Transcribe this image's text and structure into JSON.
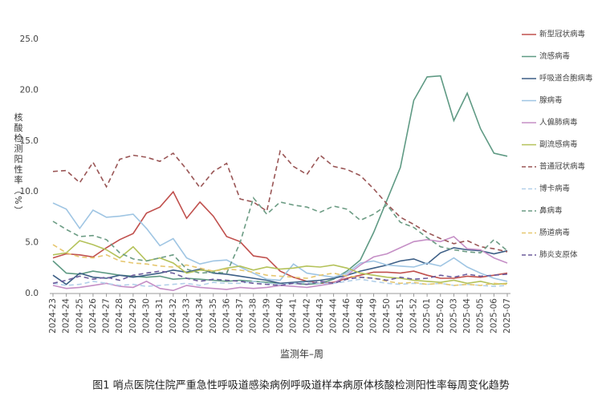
{
  "chart_data": {
    "type": "line",
    "ylabel": "核酸检测阳性率（%）",
    "xlabel": "监测年–周",
    "caption": "图1  哨点医院住院严重急性呼吸道感染病例呼吸道样本病原体核酸检测阳性率每周变化趋势",
    "categories": [
      "2024-23",
      "2024-24",
      "2024-25",
      "2024-26",
      "2024-27",
      "2024-28",
      "2024-29",
      "2024-30",
      "2024-31",
      "2024-32",
      "2024-33",
      "2024-34",
      "2024-35",
      "2024-36",
      "2024-37",
      "2024-38",
      "2024-39",
      "2024-40",
      "2024-41",
      "2024-42",
      "2024-43",
      "2024-44",
      "2024-46",
      "2024-48",
      "2024-49",
      "2024-50",
      "2024-51",
      "2024-52",
      "2025-01",
      "2025-02",
      "2025-03",
      "2025-04",
      "2025-05",
      "2025-06",
      "2025-07"
    ],
    "ylim": [
      0,
      25
    ],
    "yticks": [
      {
        "value": 0,
        "label": "0.0"
      },
      {
        "value": 5,
        "label": "5.0"
      },
      {
        "value": 10,
        "label": "10.0"
      },
      {
        "value": 15,
        "label": "15.0"
      },
      {
        "value": 20,
        "label": "20.0"
      },
      {
        "value": 25,
        "label": "25.0"
      }
    ],
    "grid": false,
    "legend": "right",
    "series": [
      {
        "name": "新型冠状病毒",
        "color": "#c0504d",
        "dashed": false,
        "values": [
          3.5,
          3.9,
          3.8,
          3.6,
          4.5,
          5.3,
          5.9,
          7.9,
          8.5,
          10.0,
          7.4,
          9.0,
          7.6,
          5.6,
          5.1,
          3.7,
          3.5,
          2.2,
          1.6,
          1.2,
          1.0,
          1.1,
          1.5,
          1.8,
          2.1,
          2.1,
          2.0,
          2.2,
          1.8,
          1.5,
          1.5,
          1.7,
          1.6,
          1.8,
          2.0
        ]
      },
      {
        "name": "流感病毒",
        "color": "#5f9a84",
        "dashed": false,
        "values": [
          3.2,
          2.0,
          1.9,
          2.2,
          2.0,
          1.8,
          1.7,
          1.6,
          1.7,
          1.4,
          1.5,
          1.4,
          1.3,
          1.2,
          1.3,
          1.2,
          1.1,
          1.0,
          1.0,
          0.9,
          1.0,
          1.4,
          2.2,
          3.3,
          6.0,
          9.2,
          12.4,
          19.0,
          21.3,
          21.4,
          17.0,
          19.7,
          16.2,
          13.8,
          13.5
        ]
      },
      {
        "name": "呼吸道合胞病毒",
        "color": "#3d5f86",
        "dashed": false,
        "values": [
          1.8,
          0.9,
          2.0,
          1.6,
          1.5,
          1.8,
          1.6,
          1.8,
          2.0,
          2.3,
          2.1,
          2.4,
          2.0,
          1.9,
          1.7,
          1.5,
          1.3,
          1.0,
          1.1,
          1.2,
          1.3,
          1.5,
          1.8,
          2.2,
          2.5,
          2.8,
          3.2,
          3.4,
          2.9,
          4.0,
          4.5,
          4.3,
          4.2,
          3.9,
          4.2
        ]
      },
      {
        "name": "腺病毒",
        "color": "#9fc5e3",
        "dashed": false,
        "values": [
          8.9,
          8.3,
          6.4,
          8.2,
          7.5,
          7.6,
          7.8,
          6.4,
          4.7,
          5.4,
          3.5,
          2.9,
          3.2,
          3.3,
          2.6,
          2.0,
          1.4,
          1.3,
          2.9,
          2.0,
          1.8,
          1.6,
          2.0,
          3.0,
          3.2,
          2.8,
          2.7,
          2.6,
          3.0,
          2.7,
          3.5,
          2.6,
          2.0,
          1.5,
          1.2
        ]
      },
      {
        "name": "人偏肺病毒",
        "color": "#c58fc6",
        "dashed": false,
        "values": [
          0.8,
          0.5,
          0.6,
          0.8,
          1.0,
          0.7,
          0.6,
          1.2,
          0.5,
          0.3,
          0.8,
          0.6,
          0.5,
          0.4,
          0.6,
          0.5,
          0.6,
          0.8,
          0.7,
          0.6,
          0.8,
          1.0,
          1.8,
          2.8,
          3.6,
          3.9,
          4.5,
          5.1,
          5.3,
          5.1,
          5.6,
          4.4,
          4.3,
          3.5,
          3.0
        ]
      },
      {
        "name": "副流感病毒",
        "color": "#b4c25a",
        "dashed": false,
        "values": [
          3.8,
          4.0,
          5.2,
          4.8,
          4.3,
          3.5,
          4.6,
          3.2,
          3.5,
          3.0,
          2.0,
          2.3,
          2.2,
          2.5,
          2.7,
          2.3,
          2.6,
          2.4,
          2.5,
          2.7,
          2.6,
          2.8,
          2.5,
          2.0,
          1.8,
          1.6,
          1.5,
          1.3,
          1.2,
          1.1,
          1.3,
          1.0,
          1.2,
          0.9,
          1.0
        ]
      },
      {
        "name": "普通冠状病毒",
        "color": "#9a5656",
        "dashed": true,
        "values": [
          12.0,
          12.1,
          10.9,
          12.9,
          10.5,
          13.2,
          13.6,
          13.4,
          13.0,
          13.8,
          12.2,
          10.4,
          12.0,
          12.8,
          9.3,
          9.0,
          8.1,
          14.0,
          12.5,
          11.7,
          13.6,
          12.5,
          12.2,
          11.6,
          10.3,
          8.8,
          7.5,
          6.8,
          6.0,
          5.4,
          4.9,
          5.2,
          4.6,
          4.4,
          4.1
        ]
      },
      {
        "name": "博卡病毒",
        "color": "#b3d0ea",
        "dashed": true,
        "values": [
          1.0,
          0.8,
          0.9,
          1.2,
          1.0,
          0.8,
          0.9,
          0.7,
          0.8,
          0.9,
          1.0,
          0.8,
          1.1,
          1.0,
          1.0,
          1.2,
          1.0,
          0.9,
          1.0,
          1.1,
          1.0,
          1.0,
          1.2,
          1.4,
          1.2,
          1.0,
          0.9,
          1.0,
          0.9,
          1.0,
          0.8,
          0.9,
          0.8,
          0.7,
          0.8
        ]
      },
      {
        "name": "鼻病毒",
        "color": "#6c9c84",
        "dashed": true,
        "values": [
          7.1,
          6.3,
          5.6,
          5.7,
          5.3,
          4.0,
          3.4,
          3.2,
          3.5,
          3.8,
          2.4,
          2.0,
          2.1,
          2.0,
          5.0,
          9.4,
          7.8,
          9.0,
          8.7,
          8.5,
          8.0,
          8.6,
          8.3,
          7.2,
          7.8,
          8.7,
          7.0,
          6.5,
          5.5,
          4.6,
          4.3,
          4.1,
          4.0,
          5.3,
          4.2
        ]
      },
      {
        "name": "肠道病毒",
        "color": "#e6c770",
        "dashed": true,
        "values": [
          4.8,
          4.0,
          3.6,
          3.5,
          3.8,
          3.2,
          3.0,
          2.9,
          2.7,
          2.6,
          2.8,
          2.5,
          2.2,
          2.4,
          2.3,
          2.1,
          1.8,
          1.7,
          1.6,
          1.5,
          1.8,
          2.0,
          1.7,
          1.6,
          1.5,
          1.2,
          1.0,
          1.1,
          0.9,
          1.0,
          0.8,
          0.9,
          0.8,
          1.0,
          0.9
        ]
      },
      {
        "name": "肺炎支原体",
        "color": "#6b5c9c",
        "dashed": true,
        "values": [
          1.0,
          1.3,
          1.7,
          1.4,
          1.6,
          1.3,
          1.8,
          2.0,
          2.2,
          2.0,
          1.5,
          1.2,
          1.4,
          1.3,
          1.2,
          1.0,
          0.9,
          0.8,
          1.0,
          0.9,
          1.2,
          1.0,
          1.4,
          1.6,
          1.5,
          1.3,
          1.6,
          1.4,
          1.5,
          1.8,
          1.6,
          1.9,
          1.7,
          1.8,
          1.9
        ]
      }
    ]
  }
}
